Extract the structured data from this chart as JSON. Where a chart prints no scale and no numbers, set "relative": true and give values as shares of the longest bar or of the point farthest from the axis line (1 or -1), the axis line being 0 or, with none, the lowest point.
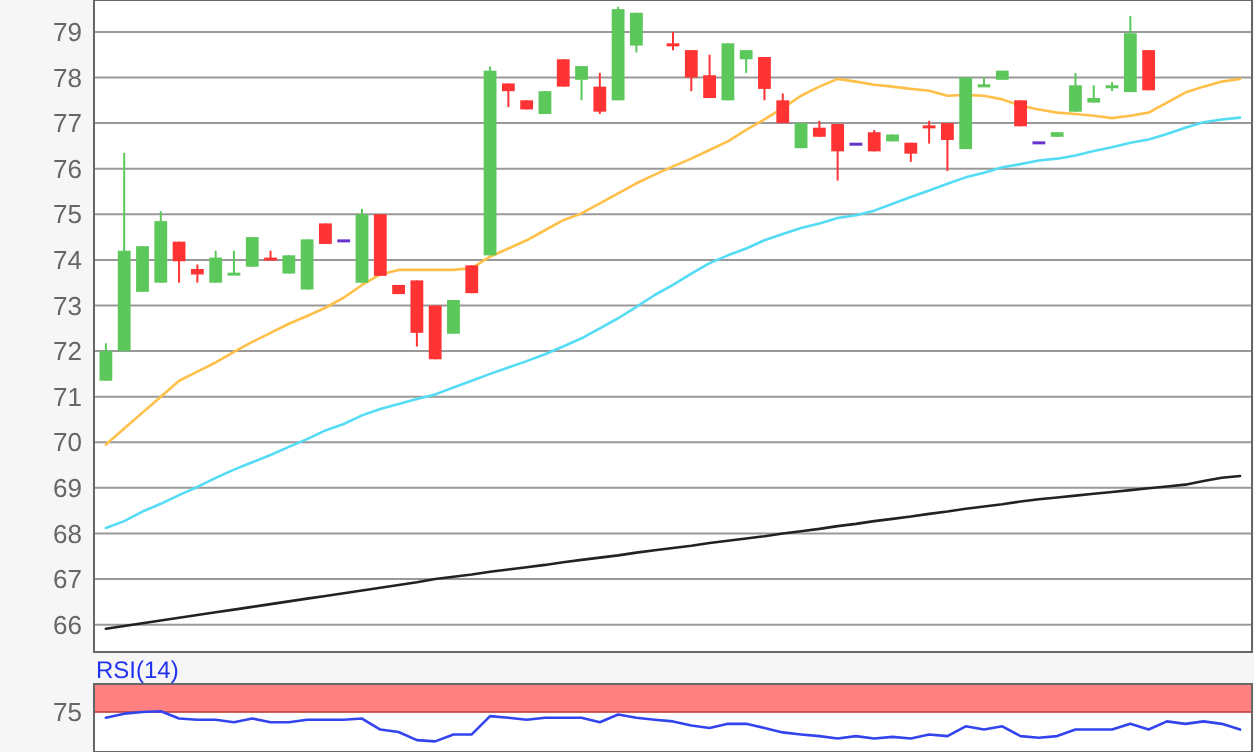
{
  "chart_data": [
    {
      "type": "candlestick",
      "categories": [
        null,
        null,
        null,
        null,
        null,
        null,
        null,
        null,
        null,
        null,
        null,
        null,
        null,
        null,
        null,
        null,
        null,
        null,
        null,
        null,
        null,
        null,
        null,
        null,
        null,
        null,
        null,
        null,
        null,
        null,
        null,
        null,
        null,
        null,
        null,
        null,
        null,
        null,
        null,
        null,
        null,
        null,
        null,
        null,
        null,
        null,
        null,
        null,
        null,
        null,
        null,
        null,
        null,
        null,
        null,
        null,
        null,
        null,
        null,
        null,
        null,
        null,
        null
      ],
      "ohlc": [
        [
          71.35,
          72.17,
          71.35,
          72.0
        ],
        [
          72.0,
          76.35,
          72.0,
          74.2
        ],
        [
          73.3,
          74.3,
          73.3,
          74.3
        ],
        [
          73.5,
          75.07,
          73.5,
          74.85
        ],
        [
          74.4,
          74.4,
          73.5,
          73.97
        ],
        [
          73.8,
          73.9,
          73.5,
          73.68
        ],
        [
          73.5,
          74.2,
          73.5,
          74.05
        ],
        [
          73.68,
          74.2,
          73.68,
          73.72
        ],
        [
          73.85,
          74.5,
          73.85,
          74.5
        ],
        [
          74.05,
          74.2,
          74.0,
          74.0
        ],
        [
          73.7,
          74.1,
          73.7,
          74.1
        ],
        [
          73.35,
          74.45,
          73.35,
          74.45
        ],
        [
          74.8,
          74.8,
          74.35,
          74.35
        ],
        [
          74.45,
          74.45,
          74.45,
          74.45
        ],
        [
          73.5,
          75.12,
          73.5,
          75.0
        ],
        [
          75.0,
          75.0,
          73.65,
          73.65
        ],
        [
          73.45,
          73.45,
          73.25,
          73.25
        ],
        [
          73.55,
          73.55,
          72.1,
          72.4
        ],
        [
          73.0,
          73.0,
          71.82,
          71.82
        ],
        [
          72.38,
          73.12,
          72.38,
          73.12
        ],
        [
          73.88,
          73.88,
          73.27,
          73.27
        ],
        [
          74.1,
          78.24,
          74.1,
          78.15
        ],
        [
          77.87,
          77.87,
          77.35,
          77.7
        ],
        [
          77.5,
          77.5,
          77.3,
          77.3
        ],
        [
          77.2,
          77.7,
          77.2,
          77.7
        ],
        [
          78.4,
          78.4,
          77.8,
          77.8
        ],
        [
          77.95,
          78.25,
          77.5,
          78.25
        ],
        [
          77.8,
          78.1,
          77.2,
          77.25
        ],
        [
          77.5,
          79.55,
          77.5,
          79.5
        ],
        [
          78.7,
          79.42,
          78.55,
          79.42
        ],
        null,
        [
          78.75,
          79.0,
          78.6,
          78.7
        ],
        [
          78.6,
          78.6,
          77.7,
          78.0
        ],
        [
          78.05,
          78.5,
          77.55,
          77.55
        ],
        [
          77.5,
          78.75,
          77.5,
          78.75
        ],
        [
          78.4,
          78.6,
          78.1,
          78.6
        ],
        [
          78.45,
          78.45,
          77.5,
          77.75
        ],
        [
          77.5,
          77.65,
          77.0,
          77.0
        ],
        [
          76.45,
          77.0,
          76.45,
          77.0
        ],
        [
          76.9,
          77.05,
          76.7,
          76.7
        ],
        [
          76.98,
          76.98,
          75.74,
          76.38
        ],
        [
          76.57,
          76.57,
          76.57,
          76.57
        ],
        [
          76.8,
          76.85,
          76.38,
          76.38
        ],
        [
          76.6,
          76.75,
          76.6,
          76.75
        ],
        [
          76.57,
          76.57,
          76.15,
          76.33
        ],
        [
          76.95,
          77.05,
          76.55,
          76.9
        ],
        [
          77.0,
          77.0,
          75.95,
          76.63
        ],
        [
          76.43,
          78.0,
          76.43,
          78.0
        ],
        [
          77.8,
          78.0,
          77.8,
          77.85
        ],
        [
          77.95,
          78.15,
          77.95,
          78.15
        ],
        [
          77.5,
          77.5,
          76.93,
          76.93
        ],
        [
          76.6,
          76.6,
          76.6,
          76.6
        ],
        [
          76.7,
          76.8,
          76.7,
          76.8
        ],
        [
          77.25,
          78.1,
          77.25,
          77.83
        ],
        [
          77.45,
          77.83,
          77.45,
          77.55
        ],
        [
          77.8,
          77.9,
          77.7,
          77.83
        ],
        [
          77.68,
          79.35,
          77.68,
          78.97
        ],
        [
          78.6,
          78.6,
          77.72,
          77.72
        ],
        null,
        null,
        null,
        null,
        null
      ],
      "colors": [
        "#5cc85c",
        "#5cc85c",
        "#5cc85c",
        "#5cc85c",
        "#ff3333",
        "#ff3333",
        "#5cc85c",
        "#5cc85c",
        "#5cc85c",
        "#ff3333",
        "#5cc85c",
        "#5cc85c",
        "#ff3333",
        "#6633cc",
        "#5cc85c",
        "#ff3333",
        "#ff3333",
        "#ff3333",
        "#ff3333",
        "#5cc85c",
        "#ff3333",
        "#5cc85c",
        "#ff3333",
        "#ff3333",
        "#5cc85c",
        "#ff3333",
        "#5cc85c",
        "#ff3333",
        "#5cc85c",
        "#5cc85c",
        null,
        "#ff3333",
        "#ff3333",
        "#ff3333",
        "#5cc85c",
        "#5cc85c",
        "#ff3333",
        "#ff3333",
        "#5cc85c",
        "#ff3333",
        "#ff3333",
        "#6633cc",
        "#ff3333",
        "#5cc85c",
        "#ff3333",
        "#ff3333",
        "#ff3333",
        "#5cc85c",
        "#5cc85c",
        "#5cc85c",
        "#ff3333",
        "#6633cc",
        "#5cc85c",
        "#5cc85c",
        "#5cc85c",
        "#5cc85c",
        "#5cc85c",
        "#ff3333",
        null,
        null,
        null,
        null,
        null
      ],
      "series": [
        {
          "type": "line",
          "color": "#ffc04a",
          "values": [
            69.95,
            70.3,
            70.65,
            71.0,
            71.35,
            71.55,
            71.75,
            71.98,
            72.2,
            72.4,
            72.6,
            72.77,
            72.95,
            73.17,
            73.45,
            73.68,
            73.78,
            73.78,
            73.78,
            73.78,
            73.82,
            74.07,
            74.25,
            74.43,
            74.65,
            74.87,
            75.02,
            75.24,
            75.46,
            75.68,
            75.87,
            76.05,
            76.22,
            76.41,
            76.6,
            76.85,
            77.08,
            77.33,
            77.6,
            77.8,
            77.97,
            77.91,
            77.84,
            77.8,
            77.75,
            77.71,
            77.6,
            77.62,
            77.6,
            77.52,
            77.38,
            77.3,
            77.23,
            77.2,
            77.16,
            77.11,
            77.16,
            77.23,
            77.45,
            77.67,
            77.8,
            77.91,
            77.97
          ]
        },
        {
          "type": "line",
          "color": "#55dcf5",
          "values": [
            68.12,
            68.27,
            68.48,
            68.65,
            68.84,
            69.02,
            69.22,
            69.4,
            69.56,
            69.72,
            69.9,
            70.07,
            70.26,
            70.4,
            70.59,
            70.73,
            70.84,
            70.95,
            71.05,
            71.2,
            71.35,
            71.5,
            71.64,
            71.78,
            71.93,
            72.1,
            72.28,
            72.5,
            72.72,
            72.97,
            73.23,
            73.45,
            73.7,
            73.93,
            74.1,
            74.25,
            74.43,
            74.57,
            74.7,
            74.8,
            74.92,
            74.98,
            75.08,
            75.23,
            75.38,
            75.52,
            75.67,
            75.81,
            75.91,
            76.03,
            76.1,
            76.18,
            76.22,
            76.29,
            76.39,
            76.47,
            76.57,
            76.64,
            76.76,
            76.9,
            77.02,
            77.08,
            77.12
          ]
        },
        {
          "type": "line",
          "color": "#222222",
          "values": [
            65.91,
            65.97,
            66.03,
            66.09,
            66.15,
            66.21,
            66.27,
            66.33,
            66.39,
            66.45,
            66.51,
            66.57,
            66.63,
            66.69,
            66.75,
            66.81,
            66.87,
            66.93,
            67.0,
            67.05,
            67.1,
            67.16,
            67.21,
            67.26,
            67.31,
            67.37,
            67.42,
            67.47,
            67.52,
            67.58,
            67.63,
            67.68,
            67.73,
            67.79,
            67.84,
            67.89,
            67.94,
            68.0,
            68.05,
            68.1,
            68.16,
            68.21,
            68.27,
            68.32,
            68.37,
            68.43,
            68.48,
            68.54,
            68.59,
            68.64,
            68.7,
            68.75,
            68.79,
            68.83,
            68.87,
            68.91,
            68.95,
            68.99,
            69.03,
            69.07,
            69.15,
            69.22,
            69.26
          ]
        }
      ],
      "ylim": [
        65.4,
        79.7
      ],
      "yticks": [
        66,
        67,
        68,
        69,
        70,
        71,
        72,
        73,
        74,
        75,
        76,
        77,
        78,
        79
      ],
      "grid": "y"
    },
    {
      "type": "line",
      "title": "RSI(14)",
      "categories": [
        null,
        null,
        null,
        null,
        null,
        null,
        null,
        null,
        null,
        null,
        null,
        null,
        null,
        null,
        null,
        null,
        null,
        null,
        null,
        null,
        null,
        null,
        null,
        null,
        null,
        null,
        null,
        null,
        null,
        null,
        null,
        null,
        null,
        null,
        null,
        null,
        null,
        null,
        null,
        null,
        null,
        null,
        null,
        null,
        null,
        null,
        null,
        null,
        null,
        null,
        null,
        null,
        null,
        null,
        null,
        null,
        null,
        null,
        null,
        null,
        null,
        null,
        null
      ],
      "relative": true,
      "series": [
        {
          "color": "#3344ee",
          "values": [
            0.84,
            0.94,
            0.98,
            1,
            0.82,
            0.79,
            0.79,
            0.73,
            0.82,
            0.73,
            0.73,
            0.79,
            0.79,
            0.79,
            0.82,
            0.55,
            0.49,
            0.29,
            0.26,
            0.43,
            0.43,
            0.88,
            0.84,
            0.79,
            0.84,
            0.84,
            0.84,
            0.73,
            0.92,
            0.84,
            0.79,
            0.75,
            0.65,
            0.59,
            0.69,
            0.69,
            0.59,
            0.48,
            0.43,
            0.39,
            0.33,
            0.39,
            0.33,
            0.37,
            0.33,
            0.43,
            0.39,
            0.63,
            0.55,
            0.63,
            0.39,
            0.35,
            0.39,
            0.55,
            0.55,
            0.55,
            0.69,
            0.55,
            0.75,
            0.69,
            0.75,
            0.69,
            0.55
          ]
        }
      ],
      "annotations": [
        "75"
      ],
      "bands": [
        {
          "axis": "y",
          "from": 0.98,
          "to": 1.67,
          "color": "#ff8080"
        }
      ]
    }
  ]
}
